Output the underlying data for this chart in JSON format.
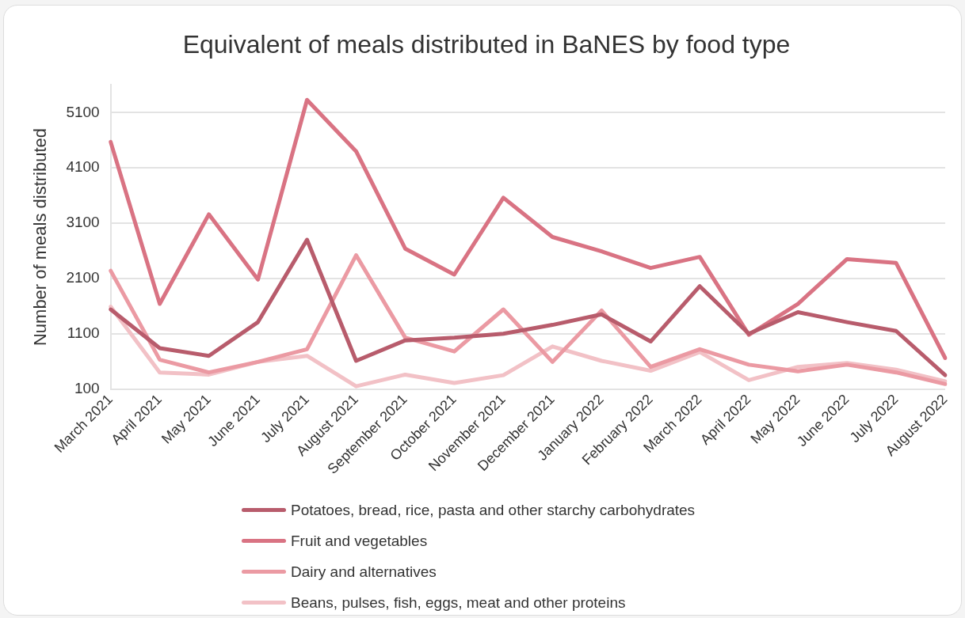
{
  "chart_data": {
    "type": "line",
    "title": "Equivalent of meals distributed in BaNES by food type",
    "ylabel": "Number of meals distributed",
    "categories": [
      "March 2021",
      "April 2021",
      "May 2021",
      "June 2021",
      "July 2021",
      "August 2021",
      "September 2021",
      "October 2021",
      "November 2021",
      "December 2021",
      "January 2022",
      "February 2022",
      "March 2022",
      "April 2022",
      "May 2022",
      "June 2022",
      "July 2022",
      "August 2022"
    ],
    "series": [
      {
        "name": "Potatoes, bread, rice, pasta and other starchy carbohydrates",
        "color": "#b85c6c",
        "values": [
          1540,
          840,
          700,
          1310,
          2800,
          610,
          980,
          1030,
          1100,
          1260,
          1450,
          960,
          1960,
          1100,
          1490,
          1310,
          1150,
          350
        ]
      },
      {
        "name": "Fruit and vegetables",
        "color": "#d97383",
        "values": [
          4570,
          1640,
          3260,
          2080,
          5330,
          4400,
          2640,
          2170,
          3560,
          2850,
          2590,
          2290,
          2490,
          1080,
          1640,
          2450,
          2380,
          660
        ]
      },
      {
        "name": "Dairy and alternatives",
        "color": "#eb9aa3",
        "values": [
          2240,
          630,
          400,
          590,
          820,
          2520,
          1030,
          780,
          1540,
          590,
          1520,
          500,
          820,
          540,
          420,
          540,
          400,
          190
        ]
      },
      {
        "name": "Beans, pulses, fish, eggs, meat and other proteins",
        "color": "#f2c1c6",
        "values": [
          1590,
          400,
          360,
          590,
          700,
          150,
          360,
          210,
          350,
          870,
          610,
          430,
          770,
          260,
          500,
          570,
          450,
          240
        ]
      }
    ],
    "ylim": [
      100,
      5600
    ],
    "yticks": [
      100,
      1100,
      2100,
      3100,
      4100,
      5100
    ],
    "grid": "y",
    "legend": "bottom",
    "marker": "none",
    "line_style": "solid"
  }
}
